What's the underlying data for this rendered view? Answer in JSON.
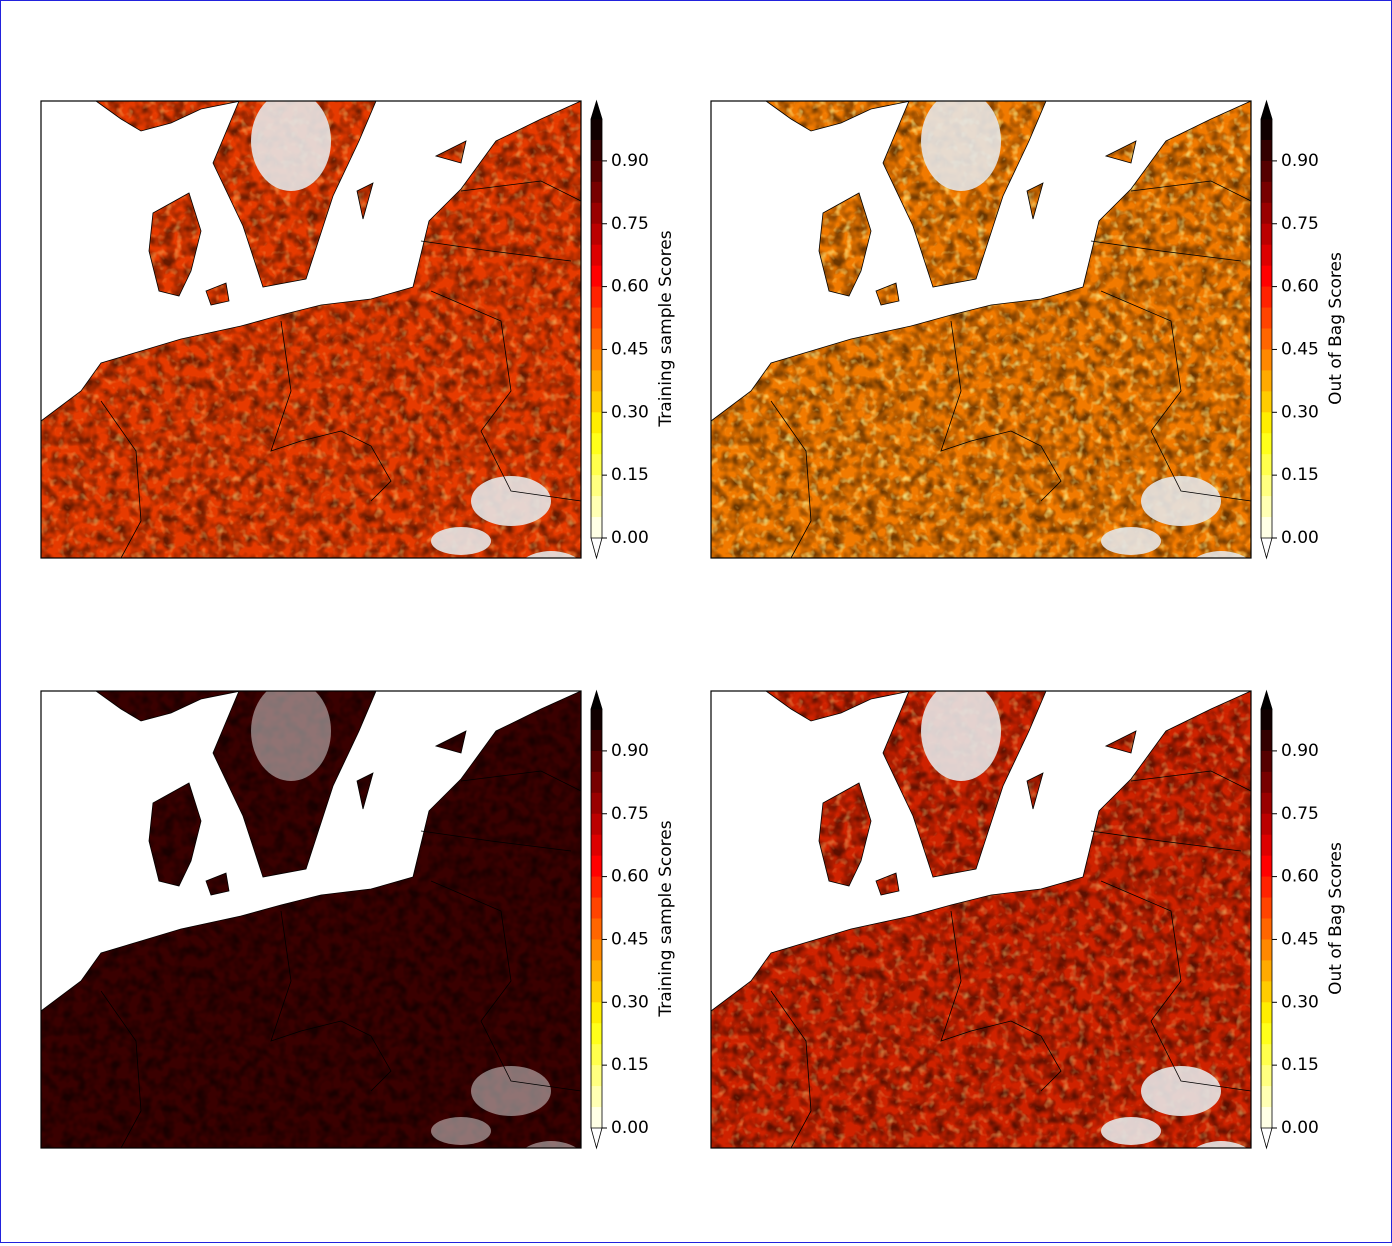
{
  "panels": [
    {
      "colorbar": {
        "label": "Training sample Scores",
        "lim": [
          0,
          1
        ],
        "ticks": [
          {
            "value": 0,
            "label": "0.00"
          },
          {
            "value": 0.15,
            "label": "0.15"
          },
          {
            "value": 0.3,
            "label": "0.30"
          },
          {
            "value": 0.45,
            "label": "0.45"
          },
          {
            "value": 0.6,
            "label": "0.60"
          },
          {
            "value": 0.75,
            "label": "0.75"
          },
          {
            "value": 0.9,
            "label": "0.90"
          }
        ]
      }
    },
    {
      "colorbar": {
        "label": "Out of Bag Scores",
        "lim": [
          0,
          1
        ],
        "ticks": [
          {
            "value": 0,
            "label": "0.00"
          },
          {
            "value": 0.15,
            "label": "0.15"
          },
          {
            "value": 0.3,
            "label": "0.30"
          },
          {
            "value": 0.45,
            "label": "0.45"
          },
          {
            "value": 0.6,
            "label": "0.60"
          },
          {
            "value": 0.75,
            "label": "0.75"
          },
          {
            "value": 0.9,
            "label": "0.90"
          }
        ]
      }
    },
    {
      "colorbar": {
        "label": "Training sample Scores",
        "lim": [
          0,
          1
        ],
        "ticks": [
          {
            "value": 0,
            "label": "0.00"
          },
          {
            "value": 0.15,
            "label": "0.15"
          },
          {
            "value": 0.3,
            "label": "0.30"
          },
          {
            "value": 0.45,
            "label": "0.45"
          },
          {
            "value": 0.6,
            "label": "0.60"
          },
          {
            "value": 0.75,
            "label": "0.75"
          },
          {
            "value": 0.9,
            "label": "0.90"
          }
        ]
      }
    },
    {
      "colorbar": {
        "label": "Out of Bag Scores",
        "lim": [
          0,
          1
        ],
        "ticks": [
          {
            "value": 0,
            "label": "0.00"
          },
          {
            "value": 0.15,
            "label": "0.15"
          },
          {
            "value": 0.3,
            "label": "0.30"
          },
          {
            "value": 0.45,
            "label": "0.45"
          },
          {
            "value": 0.6,
            "label": "0.60"
          },
          {
            "value": 0.75,
            "label": "0.75"
          },
          {
            "value": 0.9,
            "label": "0.90"
          }
        ]
      }
    }
  ]
}
